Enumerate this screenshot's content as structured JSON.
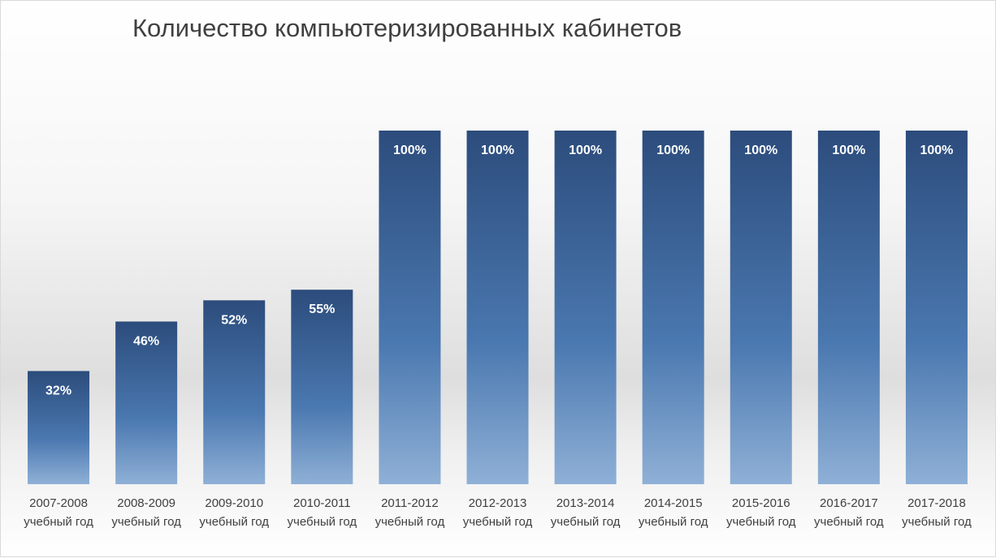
{
  "chart_data": {
    "type": "bar",
    "title": "Количество компьютеризированных кабинетов",
    "categories": [
      [
        "2007-2008",
        "учебный год"
      ],
      [
        "2008-2009",
        "учебный год"
      ],
      [
        "2009-2010",
        "учебный год"
      ],
      [
        "2010-2011",
        "учебный год"
      ],
      [
        "2011-2012",
        "учебный год"
      ],
      [
        "2012-2013",
        "учебный год"
      ],
      [
        "2013-2014",
        "учебный год"
      ],
      [
        "2014-2015",
        "учебный год"
      ],
      [
        "2015-2016",
        "учебный год"
      ],
      [
        "2016-2017",
        "учебный год"
      ],
      [
        "2017-2018",
        "учебный год"
      ]
    ],
    "values": [
      32,
      46,
      52,
      55,
      100,
      100,
      100,
      100,
      100,
      100,
      100
    ],
    "data_labels": [
      "32%",
      "46%",
      "52%",
      "55%",
      "100%",
      "100%",
      "100%",
      "100%",
      "100%",
      "100%",
      "100%"
    ],
    "ylim": [
      0,
      100
    ],
    "grid": false,
    "legend": "none",
    "colors": {
      "bar_top": "#2c4c7c",
      "bar_mid": "#4a78b0",
      "bar_bottom": "#8fb0d6",
      "text": "#404040"
    }
  }
}
